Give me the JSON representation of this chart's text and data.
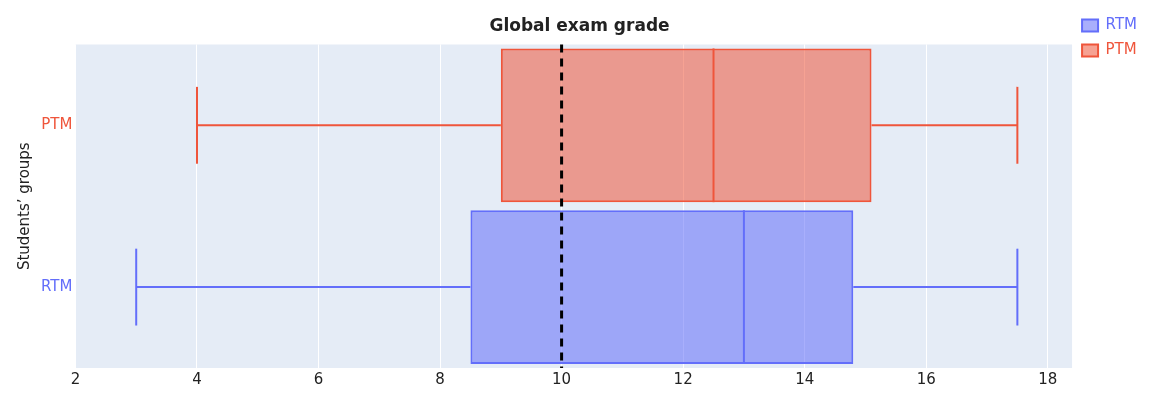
{
  "chart_data": {
    "type": "box",
    "title": "Global exam grade",
    "ylabel": "Students’ groups",
    "orientation": "horizontal",
    "categories": [
      "PTM",
      "RTM"
    ],
    "series": [
      {
        "name": "RTM",
        "color": "#636efa",
        "boxes": [
          null,
          {
            "low": 3,
            "q1": 8.5,
            "median": 13,
            "q3": 14.8,
            "high": 17.5
          }
        ]
      },
      {
        "name": "PTM",
        "color": "#ef553b",
        "boxes": [
          {
            "low": 4,
            "q1": 9,
            "median": 12.5,
            "q3": 15.1,
            "high": 17.5
          },
          null
        ]
      }
    ],
    "xlim": [
      2,
      18.4
    ],
    "xticks": [
      2,
      4,
      6,
      8,
      10,
      12,
      14,
      16,
      18
    ],
    "grid": "x",
    "legend": "top right",
    "ref_lines": [
      {
        "axis": "x",
        "value": 10,
        "color": "#000000",
        "line_style": "dashed"
      }
    ]
  }
}
